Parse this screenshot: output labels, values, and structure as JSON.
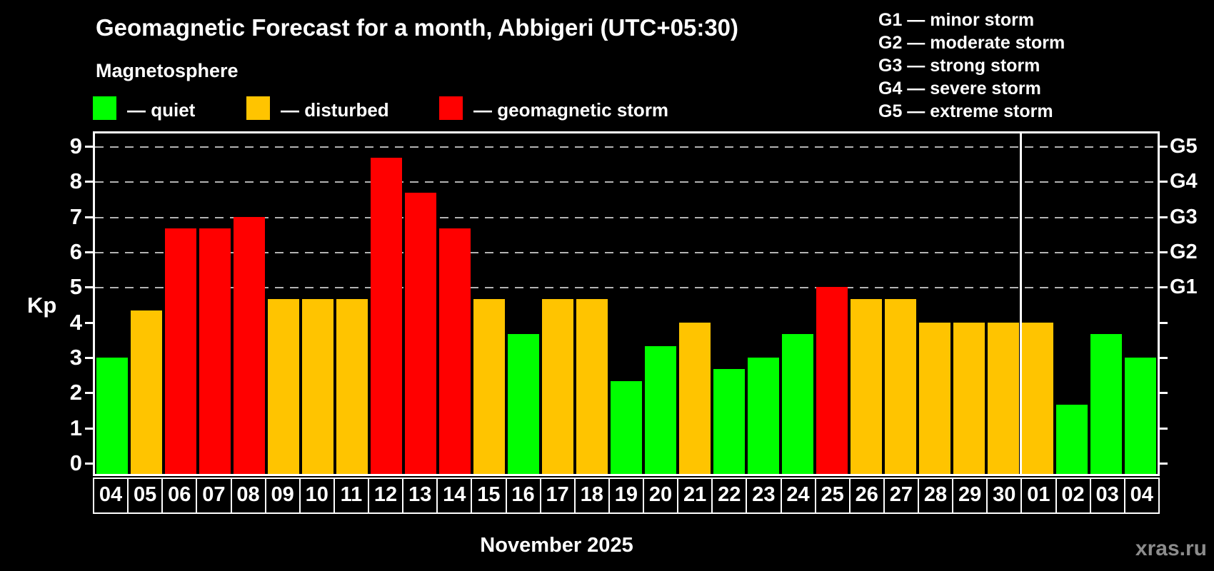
{
  "header": {
    "title": "Geomagnetic Forecast for a month, Abbigeri (UTC+05:30)",
    "subtitle": "Magnetosphere"
  },
  "legend": {
    "items": [
      {
        "level": "quiet",
        "label": "— quiet",
        "color": "#00ff00"
      },
      {
        "level": "disturbed",
        "label": "— disturbed",
        "color": "#ffc400"
      },
      {
        "level": "storm",
        "label": "— geomagnetic storm",
        "color": "#ff0000"
      }
    ]
  },
  "storm_scale_legend": {
    "items": [
      "G1 — minor storm",
      "G2 — moderate storm",
      "G3 — strong storm",
      "G4 — severe storm",
      "G5 — extreme storm"
    ]
  },
  "chart_data": {
    "type": "bar",
    "title": "Geomagnetic Forecast for a month, Abbigeri (UTC+05:30)",
    "xlabel": "November 2025",
    "ylabel": "Kp",
    "ylim": [
      0,
      9
    ],
    "yticks": [
      0,
      1,
      2,
      3,
      4,
      5,
      6,
      7,
      8,
      9
    ],
    "gridlines_kp": [
      5,
      6,
      7,
      8,
      9
    ],
    "grid": "dashed, only at storm levels G1-G5",
    "legend_position": "top-left",
    "categories": [
      "04",
      "05",
      "06",
      "07",
      "08",
      "09",
      "10",
      "11",
      "12",
      "13",
      "14",
      "15",
      "16",
      "17",
      "18",
      "19",
      "20",
      "21",
      "22",
      "23",
      "24",
      "25",
      "26",
      "27",
      "28",
      "29",
      "30",
      "01",
      "02",
      "03",
      "04"
    ],
    "values": [
      3.0,
      4.33,
      6.67,
      6.67,
      7.0,
      4.67,
      4.67,
      4.67,
      8.67,
      7.67,
      6.67,
      4.67,
      3.67,
      4.67,
      4.67,
      2.33,
      3.33,
      4.0,
      2.67,
      3.0,
      3.67,
      5.0,
      4.67,
      4.67,
      4.0,
      4.0,
      4.0,
      4.0,
      1.67,
      3.67,
      3.0
    ],
    "levels": [
      "quiet",
      "disturbed",
      "storm",
      "storm",
      "storm",
      "disturbed",
      "disturbed",
      "disturbed",
      "storm",
      "storm",
      "storm",
      "disturbed",
      "quiet",
      "disturbed",
      "disturbed",
      "quiet",
      "quiet",
      "disturbed",
      "quiet",
      "quiet",
      "quiet",
      "storm",
      "disturbed",
      "disturbed",
      "disturbed",
      "disturbed",
      "disturbed",
      "disturbed",
      "quiet",
      "quiet",
      "quiet"
    ],
    "level_colors": {
      "quiet": "#00ff00",
      "disturbed": "#ffc400",
      "storm": "#ff0000"
    },
    "g_levels": [
      {
        "label": "G1",
        "kp": 5
      },
      {
        "label": "G2",
        "kp": 6
      },
      {
        "label": "G3",
        "kp": 7
      },
      {
        "label": "G4",
        "kp": 8
      },
      {
        "label": "G5",
        "kp": 9
      }
    ],
    "month_divider_after_index": 26
  },
  "footer": {
    "month_label": "November 2025",
    "watermark": "xras.ru"
  },
  "colors": {
    "background": "#000000",
    "axis": "#ffffff",
    "gridline": "#b3b3b3",
    "watermark": "#8c8c8c"
  }
}
